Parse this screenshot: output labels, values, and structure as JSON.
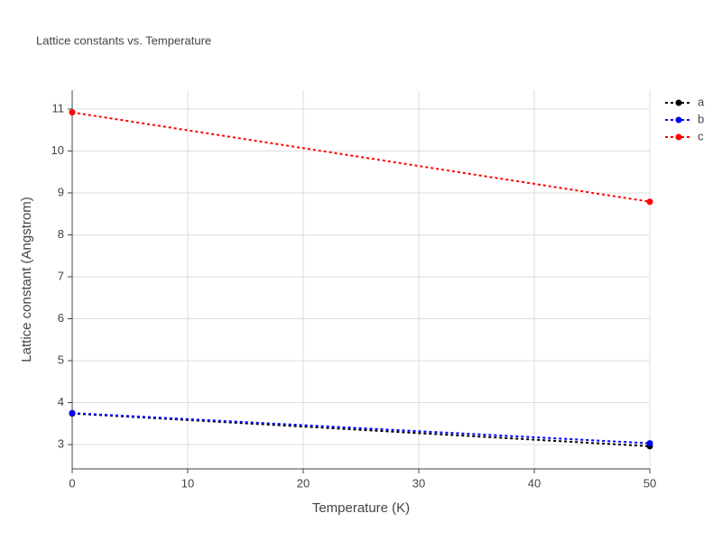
{
  "chart_data": {
    "type": "line",
    "title": "Lattice constants vs. Temperature",
    "x_label": "Temperature (K)",
    "y_label": "Lattice constant (Angstrom)",
    "x": [
      0,
      50
    ],
    "series": [
      {
        "name": "a",
        "color": "#000000",
        "values": [
          3.74,
          2.96
        ]
      },
      {
        "name": "b",
        "color": "#0000ff",
        "values": [
          3.75,
          3.03
        ]
      },
      {
        "name": "c",
        "color": "#ff0000",
        "values": [
          10.92,
          8.79
        ]
      }
    ],
    "xlim": [
      0,
      50
    ],
    "xticks": [
      0,
      10,
      20,
      30,
      40,
      50
    ],
    "ylim": [
      2.42,
      11.45
    ],
    "yticks": [
      3,
      4,
      5,
      6,
      7,
      8,
      9,
      10,
      11
    ],
    "grid": true,
    "legend": "right"
  }
}
